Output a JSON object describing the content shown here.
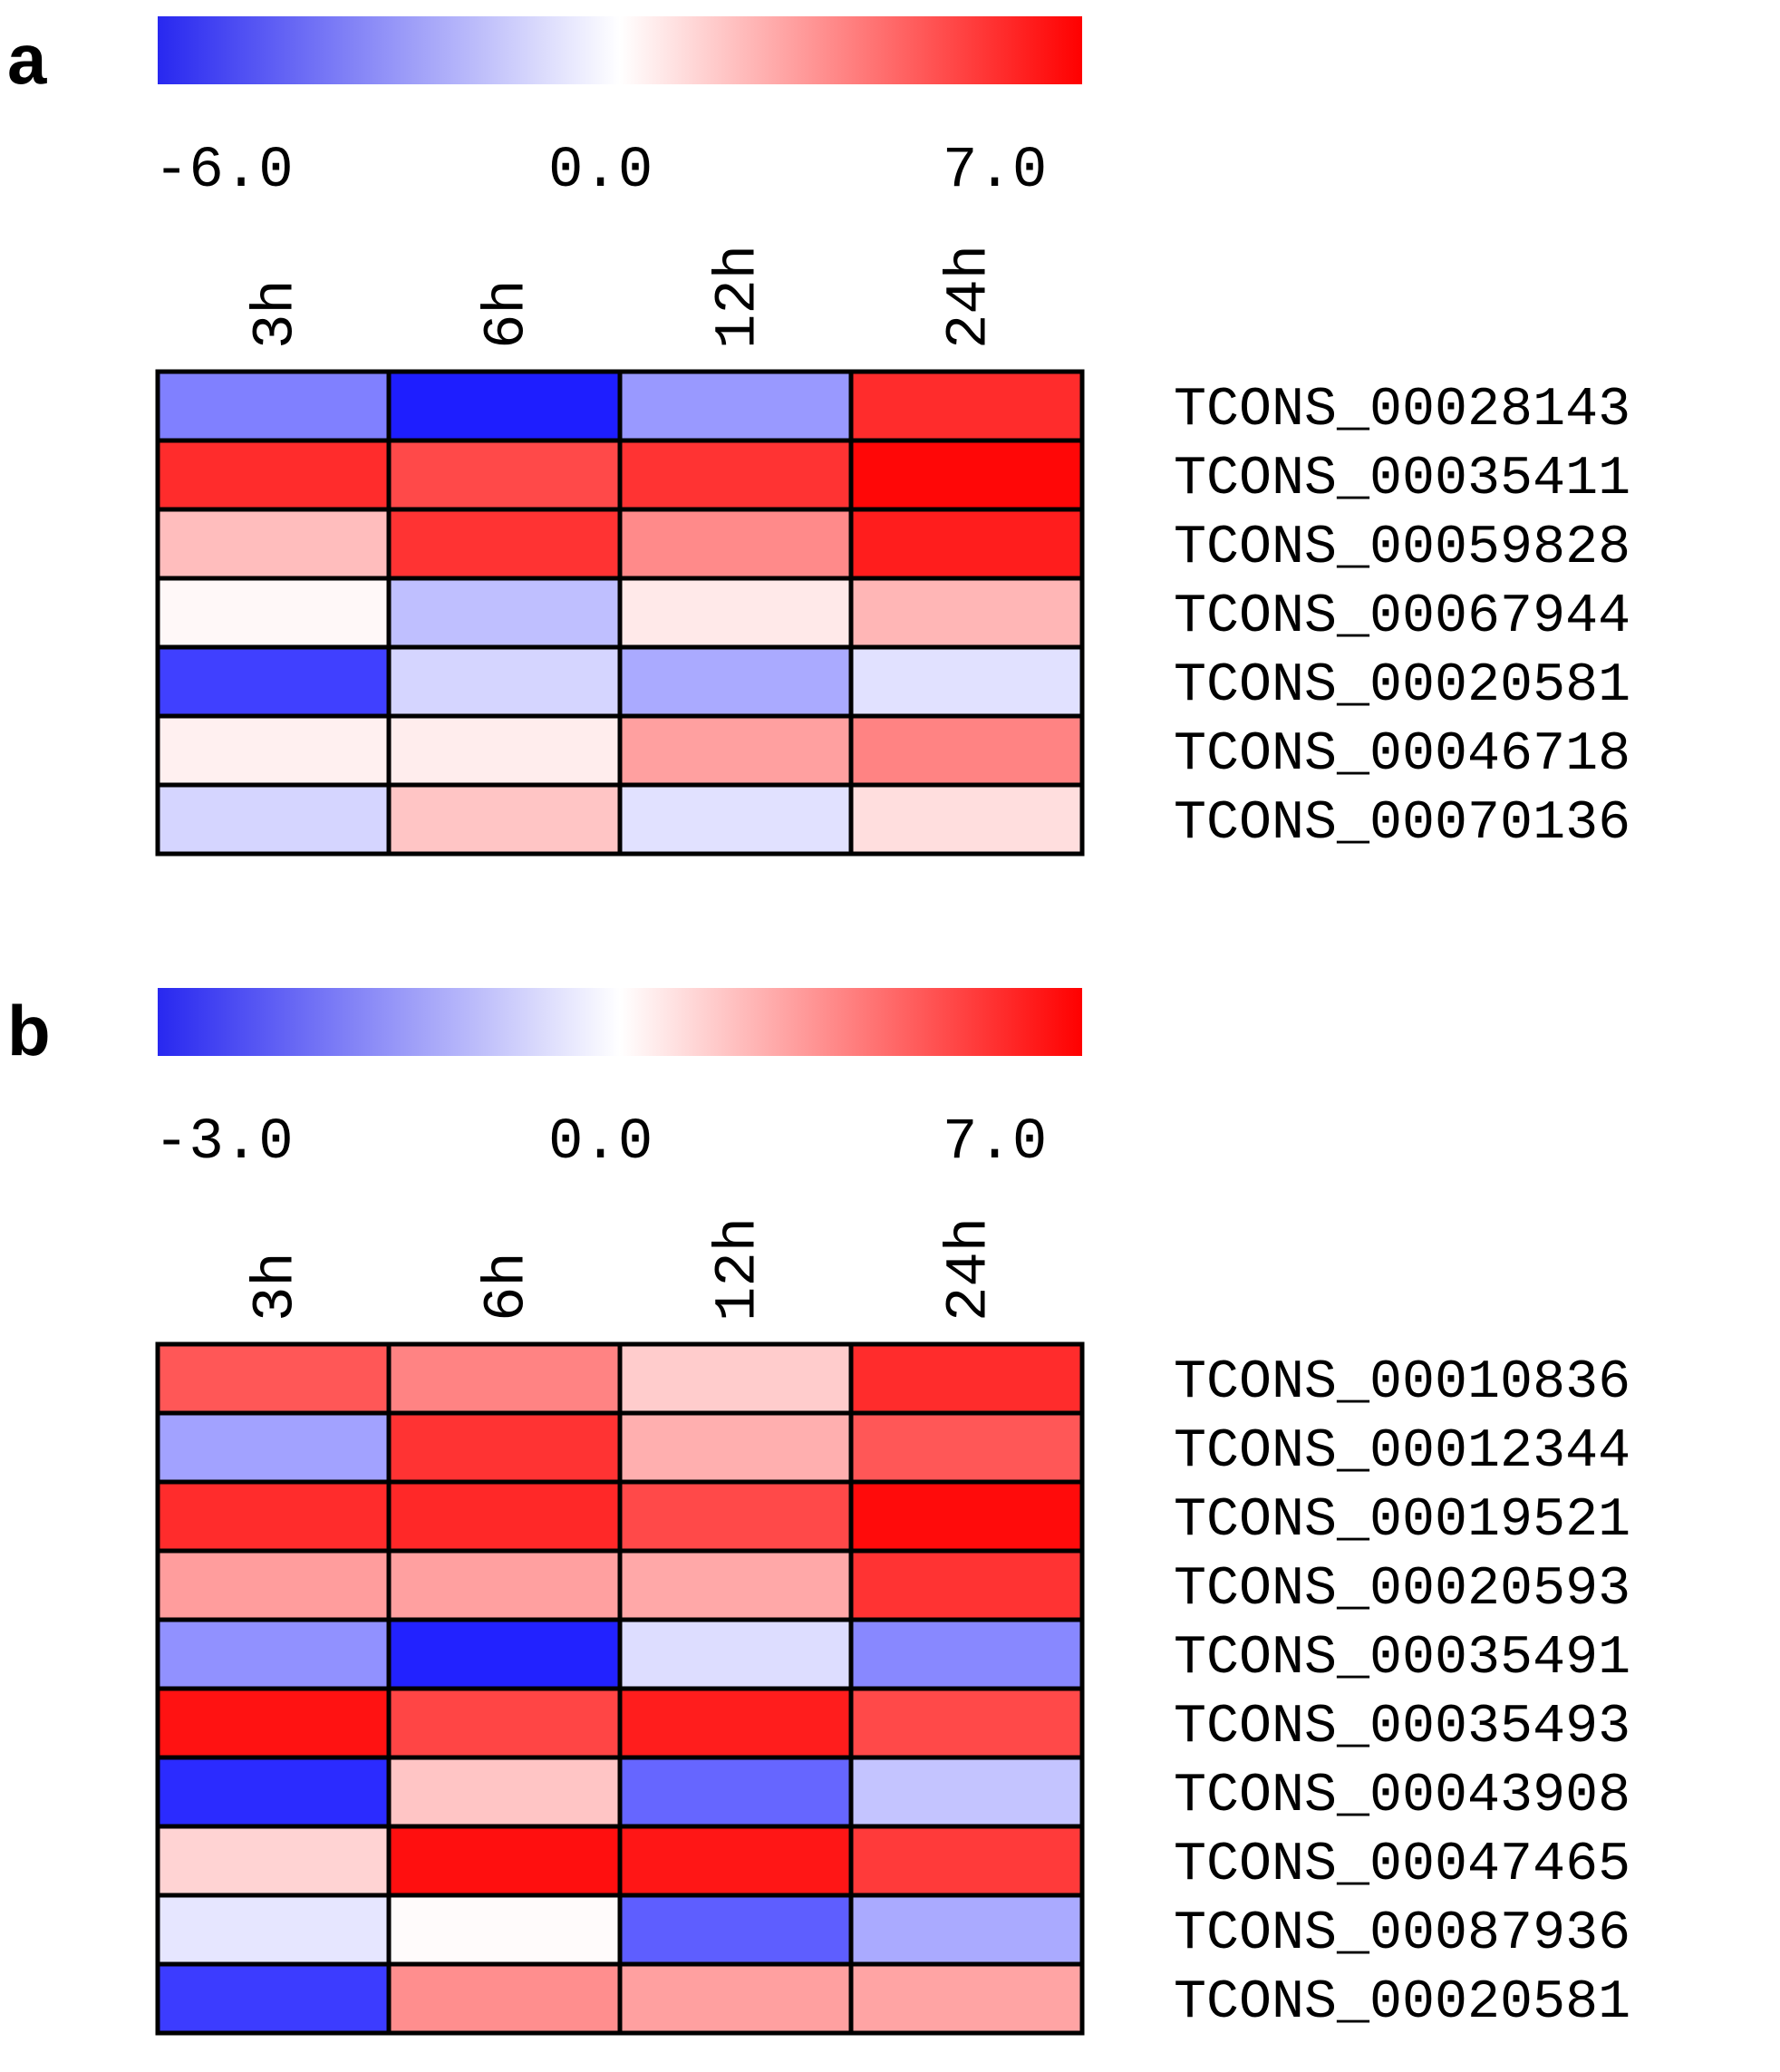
{
  "colors": {
    "low": "#0000ff",
    "mid": "#ffffff",
    "high": "#ff0000"
  },
  "chart_data": [
    {
      "type": "heatmap",
      "panel": "a",
      "scale_ticks": [
        "-6.0",
        "0.0",
        "7.0"
      ],
      "vmin": -6.0,
      "vmax": 7.0,
      "columns": [
        "3h",
        "6h",
        "12h",
        "24h"
      ],
      "rows": [
        {
          "label": "TCONS_00028143",
          "values": [
            -3.0,
            -5.3,
            -2.4,
            5.8
          ]
        },
        {
          "label": "TCONS_00035411",
          "values": [
            5.8,
            5.0,
            5.6,
            6.8
          ]
        },
        {
          "label": "TCONS_00059828",
          "values": [
            1.8,
            5.6,
            3.2,
            6.2
          ]
        },
        {
          "label": "TCONS_00067944",
          "values": [
            0.2,
            -1.5,
            0.6,
            2.0
          ]
        },
        {
          "label": "TCONS_00020581",
          "values": [
            -4.5,
            -1.0,
            -2.0,
            -0.7
          ]
        },
        {
          "label": "TCONS_00046718",
          "values": [
            0.4,
            0.5,
            2.6,
            3.4
          ]
        },
        {
          "label": "TCONS_00070136",
          "values": [
            -1.0,
            1.6,
            -0.7,
            0.9
          ]
        }
      ]
    },
    {
      "type": "heatmap",
      "panel": "b",
      "scale_ticks": [
        "-3.0",
        "0.0",
        "7.0"
      ],
      "vmin": -3.0,
      "vmax": 7.0,
      "columns": [
        "3h",
        "6h",
        "12h",
        "24h"
      ],
      "rows": [
        {
          "label": "TCONS_00010836",
          "values": [
            4.6,
            3.4,
            1.4,
            5.8
          ]
        },
        {
          "label": "TCONS_00012344",
          "values": [
            -1.1,
            5.6,
            2.2,
            4.6
          ]
        },
        {
          "label": "TCONS_00019521",
          "values": [
            5.8,
            5.9,
            5.0,
            6.7
          ]
        },
        {
          "label": "TCONS_00020593",
          "values": [
            2.7,
            2.6,
            2.4,
            5.6
          ]
        },
        {
          "label": "TCONS_00035491",
          "values": [
            -1.3,
            -2.6,
            -0.4,
            -1.4
          ]
        },
        {
          "label": "TCONS_00035493",
          "values": [
            6.5,
            5.1,
            6.2,
            5.0
          ]
        },
        {
          "label": "TCONS_00043908",
          "values": [
            -2.5,
            1.6,
            -1.8,
            -0.7
          ]
        },
        {
          "label": "TCONS_00047465",
          "values": [
            1.2,
            6.6,
            6.4,
            5.4
          ]
        },
        {
          "label": "TCONS_00087936",
          "values": [
            -0.3,
            0.1,
            -1.9,
            -1.0
          ]
        },
        {
          "label": "TCONS_00020581",
          "values": [
            -2.3,
            3.1,
            2.6,
            2.5
          ]
        }
      ]
    }
  ]
}
